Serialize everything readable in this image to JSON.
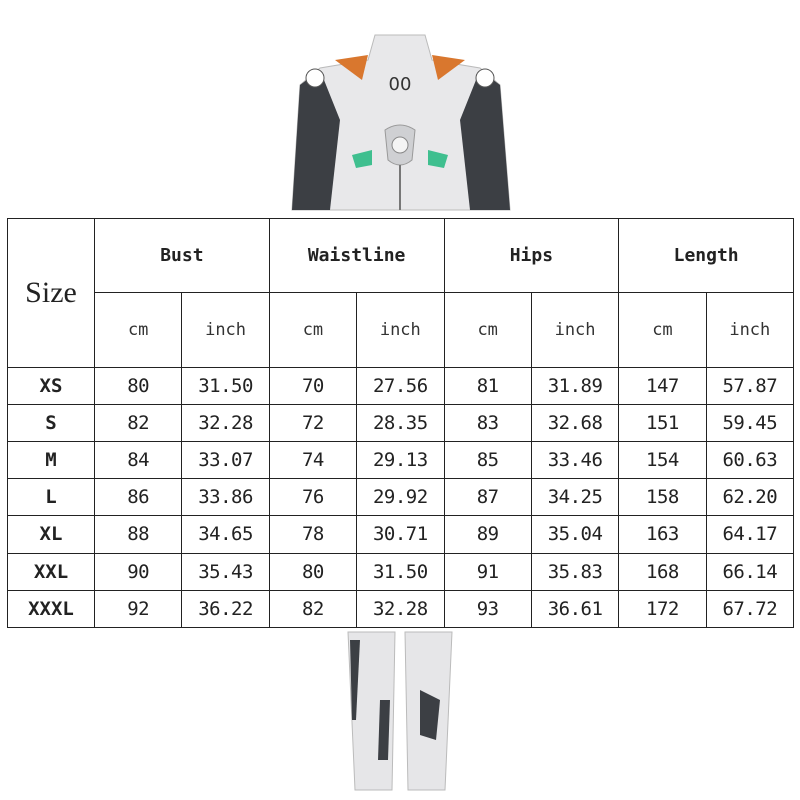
{
  "size_chart": {
    "size_header": "Size",
    "groups": [
      "Bust",
      "Waistline",
      "Hips",
      "Length"
    ],
    "units": [
      "cm",
      "inch"
    ],
    "rows": [
      {
        "size": "XS",
        "values": [
          "80",
          "31.50",
          "70",
          "27.56",
          "81",
          "31.89",
          "147",
          "57.87"
        ]
      },
      {
        "size": "S",
        "values": [
          "82",
          "32.28",
          "72",
          "28.35",
          "83",
          "32.68",
          "151",
          "59.45"
        ]
      },
      {
        "size": "M",
        "values": [
          "84",
          "33.07",
          "74",
          "29.13",
          "85",
          "33.46",
          "154",
          "60.63"
        ]
      },
      {
        "size": "L",
        "values": [
          "86",
          "33.86",
          "76",
          "29.92",
          "87",
          "34.25",
          "158",
          "62.20"
        ]
      },
      {
        "size": "XL",
        "values": [
          "88",
          "34.65",
          "78",
          "30.71",
          "89",
          "35.04",
          "163",
          "64.17"
        ]
      },
      {
        "size": "XXL",
        "values": [
          "90",
          "35.43",
          "80",
          "31.50",
          "91",
          "35.83",
          "168",
          "66.14"
        ]
      },
      {
        "size": "XXXL",
        "values": [
          "92",
          "36.22",
          "82",
          "32.28",
          "93",
          "36.61",
          "172",
          "67.72"
        ]
      }
    ]
  },
  "product_image": {
    "chest_emblem": "00",
    "colors": {
      "suit": "#e6e6e8",
      "sleeve": "#3c3f44",
      "accent_green": "#3fbf8f",
      "collar_orange": "#d9772e"
    }
  }
}
